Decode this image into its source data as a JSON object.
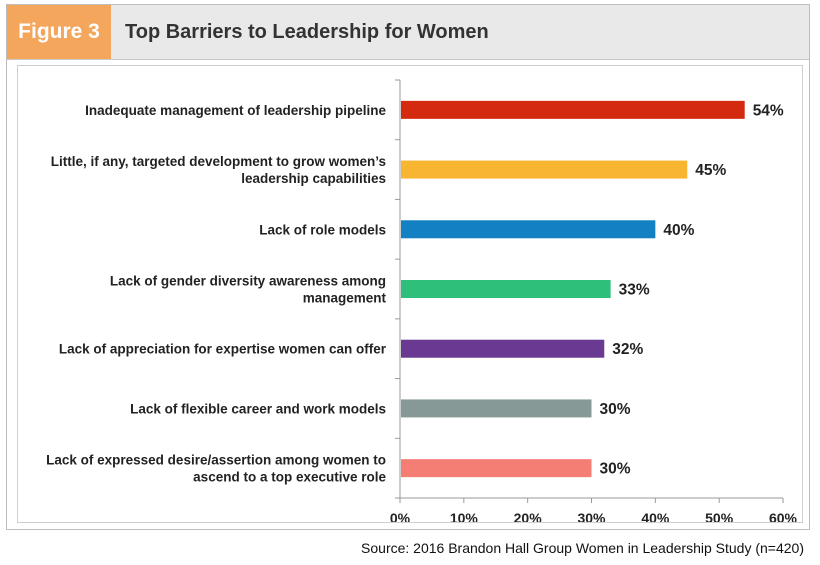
{
  "header": {
    "figure_label": "Figure 3",
    "title": "Top Barriers to Leadership for Women"
  },
  "colors": {
    "badge": "#f4a65c",
    "axis": "#9a9a9a"
  },
  "source": "Source: 2016 Brandon Hall Group Women in Leadership Study (n=420)",
  "chart_data": {
    "type": "bar",
    "orientation": "horizontal",
    "title": "Top Barriers to Leadership for Women",
    "xlim": [
      0,
      60
    ],
    "ticks": [
      0,
      10,
      20,
      30,
      40,
      50,
      60
    ],
    "tick_labels": [
      "0%",
      "10%",
      "20%",
      "30%",
      "40%",
      "50%",
      "60%"
    ],
    "grid": false,
    "categories": [
      [
        "Inadequate management of leadership pipeline"
      ],
      [
        "Little, if any, targeted development to grow women’s",
        "leadership capabilities"
      ],
      [
        "Lack of role models"
      ],
      [
        "Lack of gender diversity awareness among",
        "management"
      ],
      [
        "Lack of appreciation for expertise women can offer"
      ],
      [
        "Lack of flexible career and work models"
      ],
      [
        "Lack of expressed desire/assertion among women to",
        "ascend to a top executive role"
      ]
    ],
    "values": [
      54,
      45,
      40,
      33,
      32,
      30,
      30
    ],
    "value_labels": [
      "54%",
      "45%",
      "40%",
      "33%",
      "32%",
      "30%",
      "30%"
    ],
    "bar_colors": [
      "#d42a10",
      "#f7b532",
      "#1480c4",
      "#2ebf7a",
      "#6a3a93",
      "#879997",
      "#f47e74"
    ]
  }
}
